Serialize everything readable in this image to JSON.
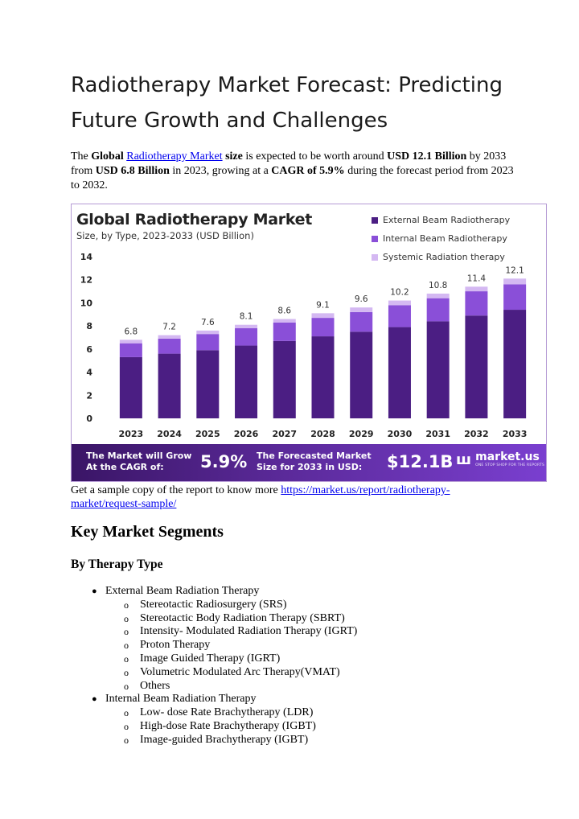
{
  "page": {
    "title": "Radiotherapy Market Forecast: Predicting Future Growth and Challenges",
    "intro": {
      "p1": "The ",
      "b1": "Global ",
      "link": "Radiotherapy Market",
      "b2": " size",
      "p2": " is expected to be worth around ",
      "b3": "USD 12.1 Billion",
      "p3": " by 2033 from ",
      "b4": "USD 6.8 Billion",
      "p4": " in 2023, growing at a ",
      "b5": "CAGR of 5.9%",
      "p5": " during the forecast period from 2023 to 2032."
    },
    "sample": {
      "text": "Get a sample copy of the report to know more ",
      "link": " https://market.us/report/radiotherapy-market/request-sample/"
    },
    "segments_heading": "Key Market Segments",
    "therapy_heading": "By Therapy Type",
    "segments": [
      {
        "label": "External Beam Radiation Therapy",
        "children": [
          "Stereotactic Radiosurgery (SRS)",
          "Stereotactic Body Radiation Therapy (SBRT)",
          "Intensity- Modulated Radiation Therapy (IGRT)",
          "Proton Therapy",
          "Image Guided Therapy (IGRT)",
          "Volumetric Modulated Arc Therapy(VMAT)",
          "Others"
        ]
      },
      {
        "label": "Internal Beam Radiation Therapy",
        "children": [
          "Low- dose Rate Brachytherapy (LDR)",
          "High-dose Rate Brachytherapy (IGBT)",
          "Image-guided Brachytherapy (IGBT)"
        ]
      }
    ]
  },
  "chart": {
    "title": "Global Radiotherapy Market",
    "subtitle": "Size, by Type, 2023-2033 (USD Billion)",
    "banner": {
      "text1": "The Market will Grow At the CAGR of:",
      "value1": "5.9%",
      "text2": "The Forecasted Market Size for 2033 in USD:",
      "value2": "$12.1B",
      "logo_icon": "m-logo-icon",
      "logo_text": "market.us",
      "logo_tagline": "ONE STOP SHOP FOR THE REPORTS"
    }
  },
  "chart_data": {
    "type": "bar",
    "stacked": true,
    "title": "Global Radiotherapy Market",
    "subtitle": "Size, by Type, 2023-2033 (USD Billion)",
    "categories": [
      "2023",
      "2024",
      "2025",
      "2026",
      "2027",
      "2028",
      "2029",
      "2030",
      "2031",
      "2032",
      "2033"
    ],
    "totals": [
      6.8,
      7.2,
      7.6,
      8.1,
      8.6,
      9.1,
      9.6,
      10.2,
      10.8,
      11.4,
      12.1
    ],
    "total_labels": [
      "6.8",
      "7.2",
      "7.6",
      "8.1",
      "8.6",
      "9.1",
      "9.6",
      "10.2",
      "10.8",
      "11.4",
      "12.1"
    ],
    "series": [
      {
        "name": "External Beam Radiotherapy",
        "color": "#4b1e83",
        "values": [
          5.3,
          5.6,
          5.9,
          6.3,
          6.7,
          7.1,
          7.5,
          7.9,
          8.4,
          8.9,
          9.4
        ]
      },
      {
        "name": "Internal Beam Radiotherapy",
        "color": "#8a4fd8",
        "values": [
          1.2,
          1.3,
          1.4,
          1.5,
          1.6,
          1.6,
          1.7,
          1.9,
          2.0,
          2.1,
          2.2
        ]
      },
      {
        "name": "Systemic Radiation therapy",
        "color": "#d4b8f2",
        "values": [
          0.3,
          0.3,
          0.3,
          0.3,
          0.3,
          0.4,
          0.4,
          0.4,
          0.4,
          0.4,
          0.5
        ]
      }
    ],
    "y_ticks": [
      0,
      2,
      4,
      6,
      8,
      10,
      12,
      14
    ],
    "ylim": [
      0,
      14
    ],
    "grid": false,
    "legend": "top-right"
  }
}
